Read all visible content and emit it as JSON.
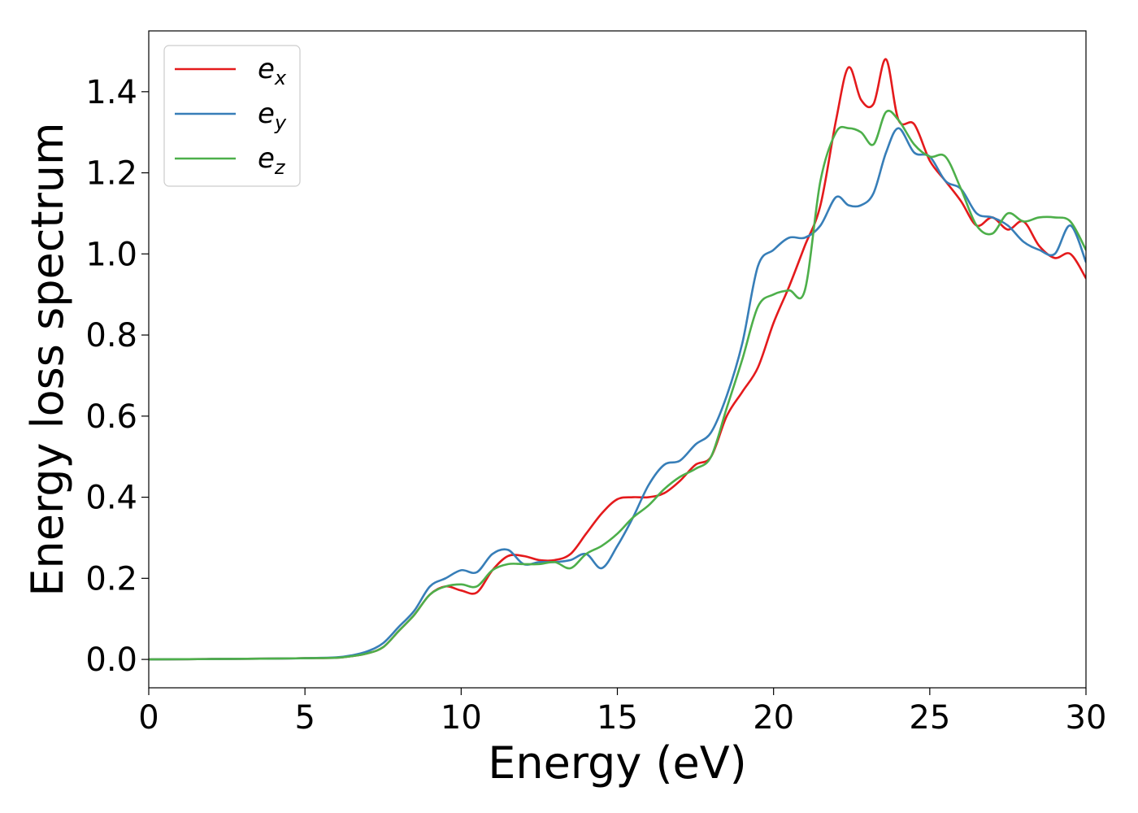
{
  "chart_data": {
    "type": "line",
    "title": "",
    "xlabel": "Energy (eV)",
    "ylabel": "Energy loss spectrum",
    "xlim": [
      0,
      30
    ],
    "ylim": [
      -0.07,
      1.55
    ],
    "xticks": [
      0,
      5,
      10,
      15,
      20,
      25,
      30
    ],
    "yticks": [
      0.0,
      0.2,
      0.4,
      0.6,
      0.8,
      1.0,
      1.2,
      1.4
    ],
    "xtick_labels": [
      "0",
      "5",
      "10",
      "15",
      "20",
      "25",
      "30"
    ],
    "ytick_labels": [
      "0.0",
      "0.2",
      "0.4",
      "0.6",
      "0.8",
      "1.0",
      "1.2",
      "1.4"
    ],
    "grid": false,
    "legend_position": "top-left",
    "series": [
      {
        "name": "e_x",
        "base": "e",
        "sub": "x",
        "color": "#e41a1c",
        "x": [
          0,
          2,
          4,
          5,
          6,
          6.5,
          7,
          7.5,
          8,
          8.5,
          9,
          9.5,
          10,
          10.5,
          11,
          11.5,
          12,
          12.5,
          13,
          13.5,
          14,
          14.5,
          15,
          15.5,
          16,
          16.5,
          17,
          17.5,
          18,
          18.5,
          19,
          19.5,
          20,
          20.5,
          21,
          21.5,
          22,
          22.4,
          22.8,
          23.2,
          23.6,
          24,
          24.5,
          25,
          25.5,
          26,
          26.5,
          27,
          27.5,
          28,
          28.5,
          29,
          29.5,
          30
        ],
        "y": [
          0,
          0.001,
          0.002,
          0.003,
          0.004,
          0.008,
          0.015,
          0.03,
          0.07,
          0.11,
          0.16,
          0.18,
          0.17,
          0.165,
          0.22,
          0.255,
          0.255,
          0.245,
          0.245,
          0.26,
          0.31,
          0.36,
          0.395,
          0.4,
          0.4,
          0.41,
          0.44,
          0.48,
          0.5,
          0.6,
          0.66,
          0.72,
          0.83,
          0.92,
          1.02,
          1.12,
          1.33,
          1.46,
          1.38,
          1.37,
          1.48,
          1.33,
          1.32,
          1.23,
          1.18,
          1.13,
          1.07,
          1.09,
          1.06,
          1.08,
          1.02,
          0.99,
          1.0,
          0.94
        ]
      },
      {
        "name": "e_y",
        "base": "e",
        "sub": "y",
        "color": "#377eb8",
        "x": [
          0,
          2,
          4,
          5,
          6,
          6.5,
          7,
          7.5,
          8,
          8.5,
          9,
          9.5,
          10,
          10.5,
          11,
          11.5,
          12,
          12.5,
          13,
          13.5,
          14,
          14.5,
          15,
          15.5,
          16,
          16.5,
          17,
          17.5,
          18,
          18.5,
          19,
          19.5,
          20,
          20.5,
          21,
          21.5,
          22,
          22.4,
          22.8,
          23.2,
          23.6,
          24,
          24.5,
          25,
          25.5,
          26,
          26.5,
          27,
          27.5,
          28,
          28.5,
          29,
          29.5,
          30
        ],
        "y": [
          0,
          0.001,
          0.002,
          0.003,
          0.005,
          0.01,
          0.02,
          0.04,
          0.08,
          0.12,
          0.18,
          0.2,
          0.22,
          0.215,
          0.26,
          0.27,
          0.235,
          0.24,
          0.24,
          0.245,
          0.26,
          0.225,
          0.28,
          0.35,
          0.43,
          0.48,
          0.49,
          0.53,
          0.56,
          0.65,
          0.78,
          0.97,
          1.01,
          1.04,
          1.04,
          1.07,
          1.14,
          1.12,
          1.12,
          1.15,
          1.25,
          1.31,
          1.25,
          1.24,
          1.18,
          1.16,
          1.1,
          1.09,
          1.07,
          1.03,
          1.01,
          1.0,
          1.07,
          0.98
        ]
      },
      {
        "name": "e_z",
        "base": "e",
        "sub": "z",
        "color": "#4daf4a",
        "x": [
          0,
          2,
          4,
          5,
          6,
          6.5,
          7,
          7.5,
          8,
          8.5,
          9,
          9.5,
          10,
          10.5,
          11,
          11.5,
          12,
          12.5,
          13,
          13.5,
          14,
          14.5,
          15,
          15.5,
          16,
          16.5,
          17,
          17.5,
          18,
          18.5,
          19,
          19.5,
          20,
          20.5,
          21,
          21.5,
          22,
          22.4,
          22.8,
          23.2,
          23.6,
          24,
          24.5,
          25,
          25.5,
          26,
          26.5,
          27,
          27.5,
          28,
          28.5,
          29,
          29.5,
          30
        ],
        "y": [
          0,
          0.001,
          0.002,
          0.003,
          0.004,
          0.008,
          0.015,
          0.03,
          0.07,
          0.11,
          0.16,
          0.18,
          0.185,
          0.18,
          0.22,
          0.235,
          0.235,
          0.235,
          0.24,
          0.225,
          0.26,
          0.28,
          0.31,
          0.35,
          0.38,
          0.42,
          0.45,
          0.47,
          0.5,
          0.62,
          0.74,
          0.87,
          0.9,
          0.91,
          0.91,
          1.18,
          1.3,
          1.31,
          1.3,
          1.27,
          1.35,
          1.33,
          1.27,
          1.24,
          1.24,
          1.16,
          1.07,
          1.05,
          1.1,
          1.08,
          1.09,
          1.09,
          1.08,
          1.01
        ]
      }
    ]
  }
}
